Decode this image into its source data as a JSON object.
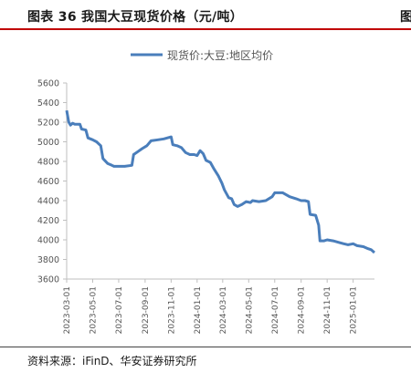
{
  "figure": {
    "title": "图表 36 我国大豆现货价格（元/吨）",
    "cut_title_char": "图",
    "source": "资料来源：iFinD、华安证券研究所"
  },
  "colors": {
    "line": "#4a7ebb",
    "title_rule": "#c00000",
    "axis": "#bfbfbf",
    "text": "#555555"
  },
  "chart_data": {
    "type": "line",
    "legend_position": "top-center",
    "grid": false,
    "ylim": [
      3600,
      5600
    ],
    "yticks": [
      3600,
      3800,
      4000,
      4200,
      4400,
      4600,
      4800,
      5000,
      5200,
      5400,
      5600
    ],
    "xticks": [
      "2023-03-01",
      "2023-05-01",
      "2023-07-01",
      "2023-09-01",
      "2023-11-01",
      "2024-01-01",
      "2024-03-01",
      "2024-05-01",
      "2024-07-01",
      "2024-09-01",
      "2024-11-01",
      "2025-01-01"
    ],
    "xlim": [
      "2023-03-01",
      "2025-02-20"
    ],
    "series": [
      {
        "name": "现货价:大豆:地区均价",
        "points": [
          [
            "2023-03-01",
            5320
          ],
          [
            "2023-03-06",
            5200
          ],
          [
            "2023-03-10",
            5170
          ],
          [
            "2023-03-15",
            5190
          ],
          [
            "2023-03-20",
            5180
          ],
          [
            "2023-04-01",
            5180
          ],
          [
            "2023-04-05",
            5130
          ],
          [
            "2023-04-15",
            5120
          ],
          [
            "2023-04-20",
            5040
          ],
          [
            "2023-05-01",
            5020
          ],
          [
            "2023-05-10",
            5000
          ],
          [
            "2023-05-20",
            4960
          ],
          [
            "2023-05-25",
            4830
          ],
          [
            "2023-06-05",
            4780
          ],
          [
            "2023-06-15",
            4760
          ],
          [
            "2023-06-20",
            4750
          ],
          [
            "2023-07-15",
            4750
          ],
          [
            "2023-08-01",
            4760
          ],
          [
            "2023-08-05",
            4870
          ],
          [
            "2023-08-15",
            4900
          ],
          [
            "2023-08-25",
            4930
          ],
          [
            "2023-09-05",
            4960
          ],
          [
            "2023-09-15",
            5010
          ],
          [
            "2023-10-01",
            5020
          ],
          [
            "2023-10-15",
            5030
          ],
          [
            "2023-11-01",
            5050
          ],
          [
            "2023-11-05",
            4970
          ],
          [
            "2023-11-15",
            4960
          ],
          [
            "2023-11-25",
            4940
          ],
          [
            "2023-12-05",
            4890
          ],
          [
            "2023-12-15",
            4870
          ],
          [
            "2023-12-25",
            4870
          ],
          [
            "2024-01-01",
            4860
          ],
          [
            "2024-01-08",
            4910
          ],
          [
            "2024-01-15",
            4880
          ],
          [
            "2024-01-22",
            4810
          ],
          [
            "2024-02-01",
            4790
          ],
          [
            "2024-02-10",
            4720
          ],
          [
            "2024-02-20",
            4650
          ],
          [
            "2024-02-28",
            4580
          ],
          [
            "2024-03-05",
            4510
          ],
          [
            "2024-03-15",
            4430
          ],
          [
            "2024-03-22",
            4420
          ],
          [
            "2024-03-28",
            4360
          ],
          [
            "2024-04-05",
            4340
          ],
          [
            "2024-04-15",
            4360
          ],
          [
            "2024-04-25",
            4390
          ],
          [
            "2024-05-05",
            4380
          ],
          [
            "2024-05-10",
            4400
          ],
          [
            "2024-05-25",
            4390
          ],
          [
            "2024-06-10",
            4400
          ],
          [
            "2024-06-25",
            4440
          ],
          [
            "2024-07-01",
            4480
          ],
          [
            "2024-07-20",
            4480
          ],
          [
            "2024-08-05",
            4440
          ],
          [
            "2024-08-20",
            4420
          ],
          [
            "2024-09-01",
            4400
          ],
          [
            "2024-09-10",
            4400
          ],
          [
            "2024-09-18",
            4390
          ],
          [
            "2024-09-22",
            4260
          ],
          [
            "2024-10-05",
            4250
          ],
          [
            "2024-10-12",
            4150
          ],
          [
            "2024-10-15",
            3990
          ],
          [
            "2024-10-25",
            3990
          ],
          [
            "2024-11-01",
            4000
          ],
          [
            "2024-11-15",
            3990
          ],
          [
            "2024-12-01",
            3970
          ],
          [
            "2024-12-10",
            3960
          ],
          [
            "2024-12-20",
            3950
          ],
          [
            "2025-01-01",
            3960
          ],
          [
            "2025-01-10",
            3940
          ],
          [
            "2025-01-25",
            3930
          ],
          [
            "2025-02-05",
            3910
          ],
          [
            "2025-02-12",
            3900
          ],
          [
            "2025-02-20",
            3870
          ]
        ]
      }
    ]
  }
}
